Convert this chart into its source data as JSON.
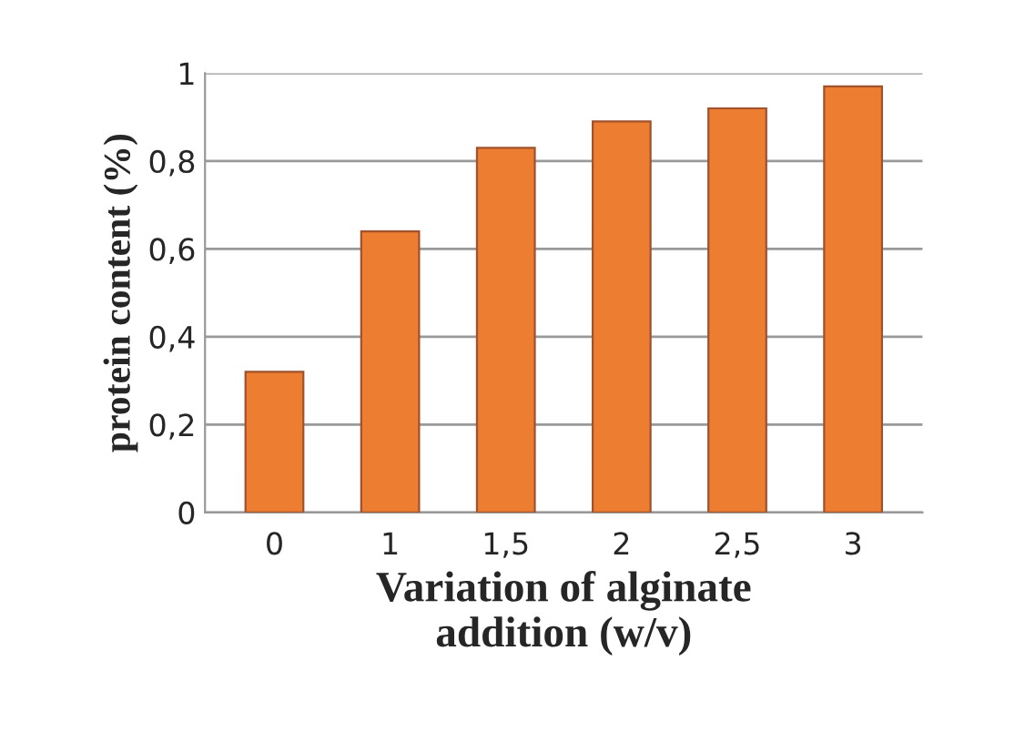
{
  "chart_data": {
    "type": "bar",
    "xlabel": "Variation of alginate\naddition (w/v)",
    "ylabel": "protein content (%)",
    "categories": [
      "0",
      "1",
      "1,5",
      "2",
      "2,5",
      "3"
    ],
    "values": [
      0.32,
      0.64,
      0.83,
      0.89,
      0.92,
      0.97
    ],
    "color": "#ed7d31",
    "ylim": [
      0,
      1
    ],
    "yticks": [
      0,
      {
        "value": 0.2,
        "label": "0,2"
      },
      {
        "value": 0.4,
        "label": "0,4"
      },
      {
        "value": 0.6,
        "label": "0,6"
      },
      {
        "value": 0.8,
        "label": "0,8"
      },
      1
    ],
    "grid": "y"
  }
}
